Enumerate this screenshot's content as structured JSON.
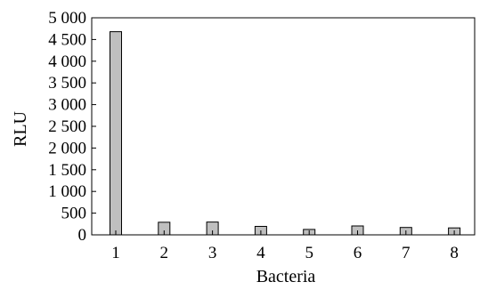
{
  "chart_data": {
    "type": "bar",
    "categories": [
      "1",
      "2",
      "3",
      "4",
      "5",
      "6",
      "7",
      "8"
    ],
    "values": [
      4680,
      290,
      295,
      195,
      125,
      205,
      170,
      160
    ],
    "xlabel": "Bacteria",
    "ylabel": "RLU",
    "ylim": [
      0,
      5000
    ],
    "yticks": [
      0,
      500,
      1000,
      1500,
      2000,
      2500,
      3000,
      3500,
      4000,
      4500,
      5000
    ],
    "ytick_labels": [
      "0",
      "500",
      "1 000",
      "1 500",
      "2 000",
      "2 500",
      "3 000",
      "3 500",
      "4 000",
      "4 500",
      "5 000"
    ],
    "bar_color": "#bfbfbf",
    "bar_edge_color": "#000000",
    "grid": false
  }
}
